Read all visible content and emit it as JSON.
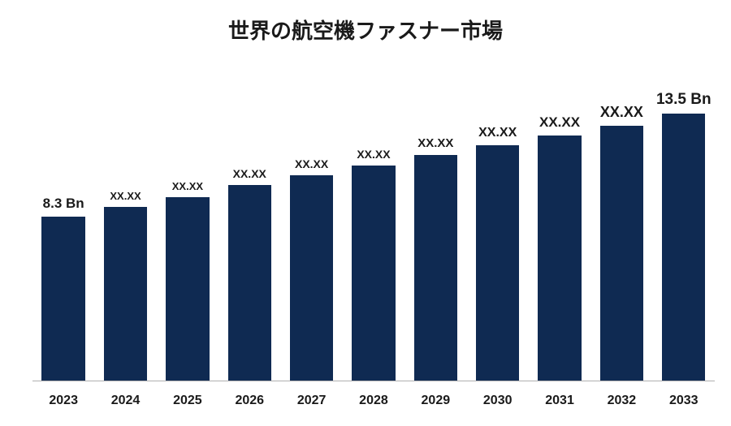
{
  "chart": {
    "type": "bar",
    "title": "世界の航空機ファスナー市場",
    "title_fontsize": 26,
    "background_color": "#ffffff",
    "bar_color": "#0f2a52",
    "baseline_color": "#b0b0b0",
    "title_color": "#1a1a1a",
    "label_color": "#1a1a1a",
    "xlabel_fontsize": 16,
    "bar_width_ratio": 0.7,
    "ymax": 13.5,
    "bars": [
      {
        "category": "2023",
        "value": 8.3,
        "label": "8.3 Bn",
        "label_fontsize": 17,
        "label_bold": true
      },
      {
        "category": "2024",
        "value": 8.8,
        "label": "XX.XX",
        "label_fontsize": 13,
        "label_bold": false
      },
      {
        "category": "2025",
        "value": 9.3,
        "label": "XX.XX",
        "label_fontsize": 13,
        "label_bold": false
      },
      {
        "category": "2026",
        "value": 9.9,
        "label": "XX.XX",
        "label_fontsize": 14,
        "label_bold": false
      },
      {
        "category": "2027",
        "value": 10.4,
        "label": "XX.XX",
        "label_fontsize": 14,
        "label_bold": false
      },
      {
        "category": "2028",
        "value": 10.9,
        "label": "XX.XX",
        "label_fontsize": 14,
        "label_bold": false
      },
      {
        "category": "2029",
        "value": 11.4,
        "label": "XX.XX",
        "label_fontsize": 15,
        "label_bold": false
      },
      {
        "category": "2030",
        "value": 11.9,
        "label": "XX.XX",
        "label_fontsize": 16,
        "label_bold": false
      },
      {
        "category": "2031",
        "value": 12.4,
        "label": "XX.XX",
        "label_fontsize": 17,
        "label_bold": false
      },
      {
        "category": "2032",
        "value": 12.9,
        "label": "XX.XX",
        "label_fontsize": 18,
        "label_bold": false
      },
      {
        "category": "2033",
        "value": 13.5,
        "label": "13.5 Bn",
        "label_fontsize": 19,
        "label_bold": true
      }
    ]
  }
}
